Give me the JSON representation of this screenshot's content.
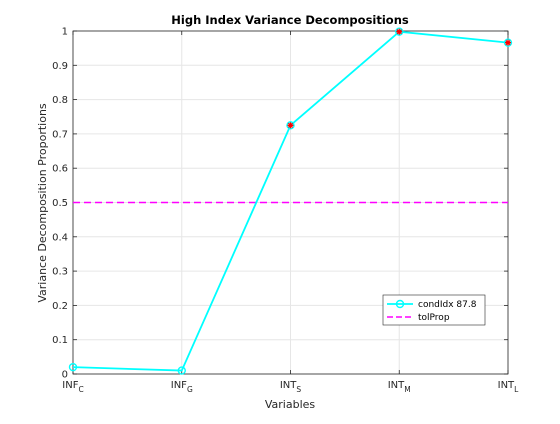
{
  "chart_data": {
    "type": "line",
    "title": "High Index Variance Decompositions",
    "xlabel": "Variables",
    "ylabel": "Variance Decomposition Proportions",
    "categories": [
      {
        "base": "INF",
        "sub": "C"
      },
      {
        "base": "INF",
        "sub": "G"
      },
      {
        "base": "INT",
        "sub": "S"
      },
      {
        "base": "INT",
        "sub": "M"
      },
      {
        "base": "INT",
        "sub": "L"
      }
    ],
    "ylim": [
      0,
      1
    ],
    "yticks": [
      "0",
      "0.1",
      "0.2",
      "0.3",
      "0.4",
      "0.5",
      "0.6",
      "0.7",
      "0.8",
      "0.9",
      "1"
    ],
    "grid": true,
    "series": [
      {
        "name": "condIdx 87.8",
        "values": [
          0.02,
          0.01,
          0.725,
          0.998,
          0.966
        ],
        "color": "#00ffff",
        "marker": "circle",
        "highlighted": [
          false,
          false,
          true,
          true,
          true
        ],
        "highlight_color": "#ff0000"
      }
    ],
    "reference_lines": [
      {
        "name": "tolProp",
        "value": 0.5,
        "color": "#ff00ff",
        "style": "dashed"
      }
    ],
    "legend_position": "lower-right"
  }
}
